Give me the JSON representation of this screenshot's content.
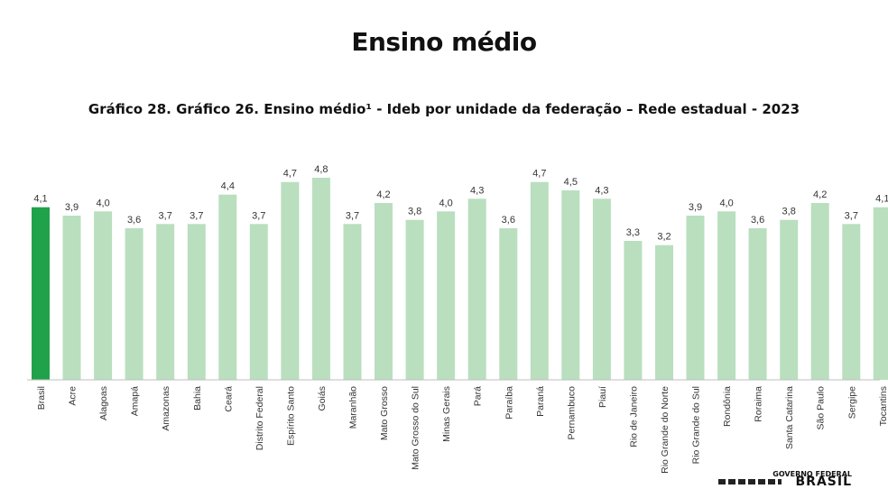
{
  "header": {
    "title": "Ensino médio"
  },
  "chart_data": {
    "type": "bar",
    "title": "Gráfico 28. Gráfico 26. Ensino médio¹ - Ideb por unidade da federação – Rede estadual - 2023",
    "xlabel": "",
    "ylabel": "",
    "ylim": [
      0,
      4.8
    ],
    "grid": false,
    "legend": "none",
    "categories": [
      "Brasil",
      "Acre",
      "Alagoas",
      "Amapá",
      "Amazonas",
      "Bahia",
      "Ceará",
      "Distrito Federal",
      "Espírito Santo",
      "Goiás",
      "Maranhão",
      "Mato Grosso",
      "Mato Grosso do Sul",
      "Minas Gerais",
      "Pará",
      "Paraíba",
      "Paraná",
      "Pernambuco",
      "Piauí",
      "Rio de Janeiro",
      "Rio Grande do Norte",
      "Rio Grande do Sul",
      "Rondônia",
      "Roraima",
      "Santa Catarina",
      "São Paulo",
      "Sergipe",
      "Tocantins"
    ],
    "values": [
      4.1,
      3.9,
      4.0,
      3.6,
      3.7,
      3.7,
      4.4,
      3.7,
      4.7,
      4.8,
      3.7,
      4.2,
      3.8,
      4.0,
      4.3,
      3.6,
      4.7,
      4.5,
      4.3,
      3.3,
      3.2,
      3.9,
      4.0,
      3.6,
      3.8,
      4.2,
      3.7,
      4.1
    ],
    "value_labels": [
      "4,1",
      "3,9",
      "4,0",
      "3,6",
      "3,7",
      "3,7",
      "4,4",
      "3,7",
      "4,7",
      "4,8",
      "3,7",
      "4,2",
      "3,8",
      "4,0",
      "4,3",
      "3,6",
      "4,7",
      "4,5",
      "4,3",
      "3,3",
      "3,2",
      "3,9",
      "4,0",
      "3,6",
      "3,8",
      "4,2",
      "3,7",
      "4,1"
    ],
    "highlight_index": 0,
    "colors": {
      "highlight": "#1fa24a",
      "bar": "#b9dfbf",
      "axis": "#bfbfbf",
      "label": "#333333"
    }
  },
  "footer": {
    "logo_text": "GOVERNO FEDERAL",
    "logo_brand": "BRASIL"
  }
}
